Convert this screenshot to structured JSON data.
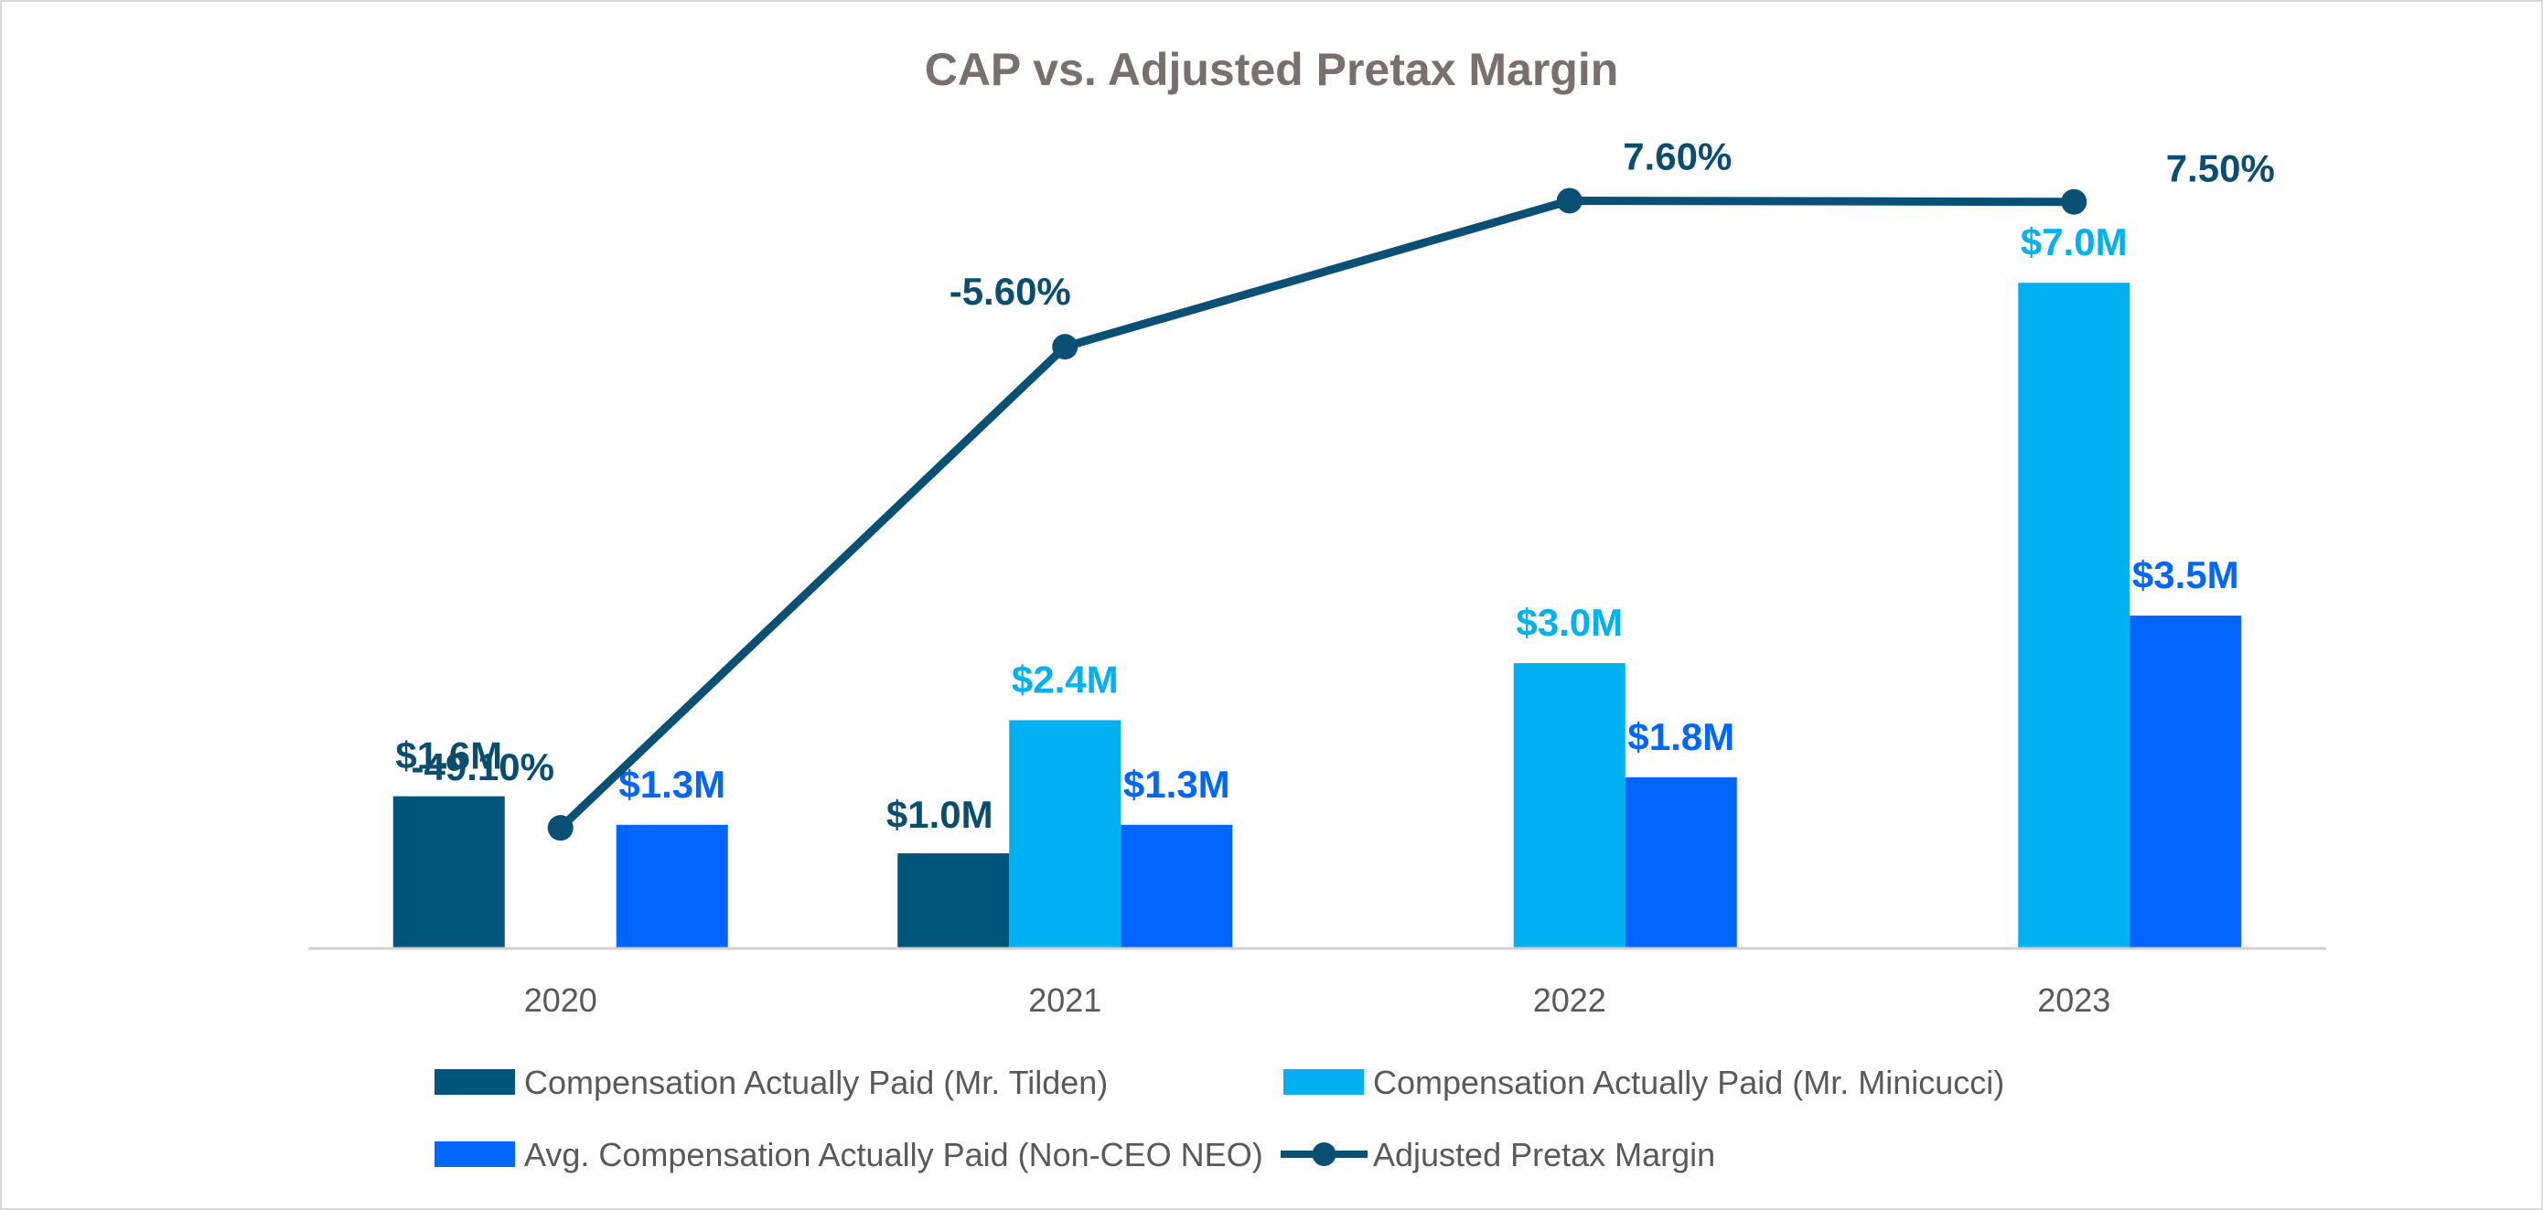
{
  "chart_data": {
    "type": "bar",
    "title": "CAP vs. Adjusted Pretax Margin",
    "categories": [
      "2020",
      "2021",
      "2022",
      "2023"
    ],
    "xlabel": "",
    "ylabel": "",
    "ylim": [
      0,
      7.3
    ],
    "grid": false,
    "legend_position": "bottom",
    "series": [
      {
        "name": "Compensation Actually Paid (Mr. Tilden)",
        "kind": "bar",
        "color": "#00557a",
        "label_color": "#0a4d6f",
        "values": [
          1.6,
          1.0,
          null,
          null
        ],
        "labels": [
          "$1.6M",
          "$1.0M",
          "",
          ""
        ]
      },
      {
        "name": "Compensation Actually Paid (Mr. Minicucci)",
        "kind": "bar",
        "color": "#00b0f0",
        "label_color": "#00b0f0",
        "values": [
          null,
          2.4,
          3.0,
          7.0
        ],
        "labels": [
          "",
          "$2.4M",
          "$3.0M",
          "$7.0M"
        ]
      },
      {
        "name": "Avg. Compensation Actually Paid (Non-CEO NEO)",
        "kind": "bar",
        "color": "#0066ff",
        "label_color": "#0066ff",
        "values": [
          1.3,
          1.3,
          1.8,
          3.5
        ],
        "labels": [
          "$1.3M",
          "$1.3M",
          "$1.8M",
          "$3.5M"
        ]
      },
      {
        "name": "Adjusted Pretax Margin",
        "kind": "line",
        "color": "#0a5075",
        "label_color": "#0a4d6f",
        "values": [
          -49.1,
          -5.6,
          7.6,
          7.5
        ],
        "labels": [
          "-49.10%",
          "-5.60%",
          "7.60%",
          "7.50%"
        ],
        "ylim": [
          -60,
          15
        ]
      }
    ]
  }
}
